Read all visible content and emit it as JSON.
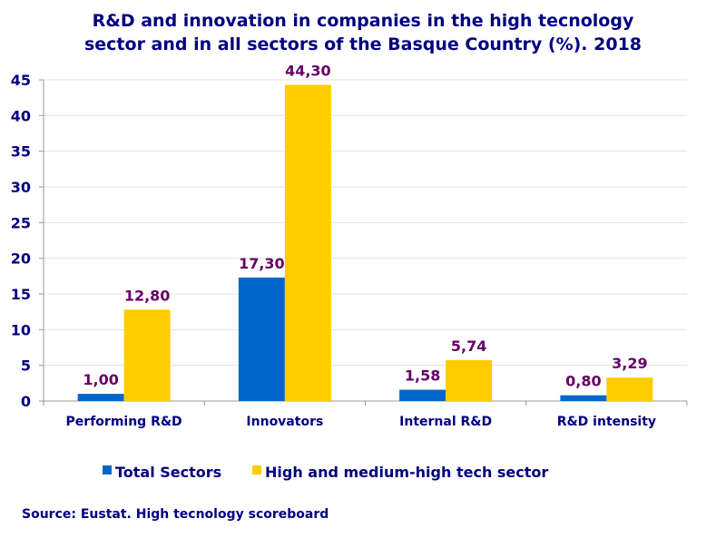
{
  "chart_data": {
    "type": "bar",
    "title": "R&D and innovation in companies in the high tecnology sector and in all sectors of the Basque Country (%). 2018",
    "title_lines": [
      "R&D and innovation in companies in the high tecnology",
      "sector and in all sectors of the Basque Country (%). 2018"
    ],
    "categories": [
      "Performing R&D",
      "Innovators",
      "Internal R&D",
      "R&D intensity"
    ],
    "series": [
      {
        "name": "Total Sectors",
        "color": "#0066CC",
        "values": [
          1.0,
          17.3,
          1.58,
          0.8
        ],
        "labels": [
          "1,00",
          "17,30",
          "1,58",
          "0,80"
        ]
      },
      {
        "name": "High and medium-high tech sector",
        "color": "#FFCC00",
        "values": [
          12.8,
          44.3,
          5.74,
          3.29
        ],
        "labels": [
          "12,80",
          "44,30",
          "5,74",
          "3,29"
        ]
      }
    ],
    "ylim": [
      0,
      45
    ],
    "yticks": [
      0,
      5,
      10,
      15,
      20,
      25,
      30,
      35,
      40,
      45
    ],
    "xlabel": "",
    "ylabel": "",
    "grid": true,
    "legend": "bottom"
  },
  "source": "Source: Eustat. High tecnology scoreboard"
}
